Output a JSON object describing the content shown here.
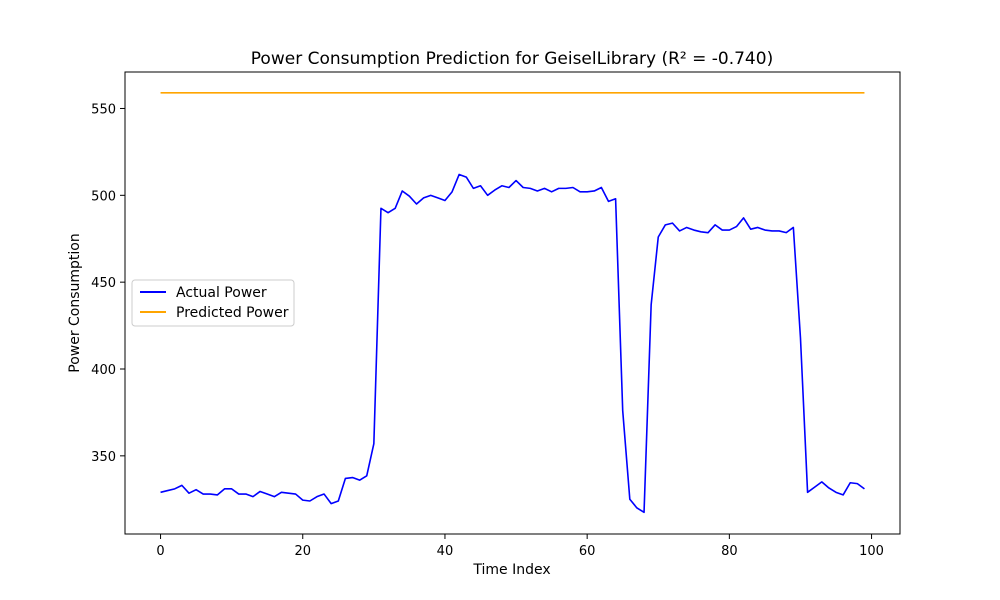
{
  "chart_data": {
    "type": "line",
    "title": "Power Consumption Prediction for GeiselLibrary (R² = -0.740)",
    "xlabel": "Time Index",
    "ylabel": "Power Consumption",
    "xlim": [
      -5,
      104
    ],
    "ylim": [
      305,
      571
    ],
    "xticks": [
      0,
      20,
      40,
      60,
      80,
      100
    ],
    "yticks": [
      350,
      400,
      450,
      500,
      550
    ],
    "grid": false,
    "legend_position": "center-left",
    "series": [
      {
        "name": "Actual Power",
        "color": "#0000ff",
        "x": [
          0,
          1,
          2,
          3,
          4,
          5,
          6,
          7,
          8,
          9,
          10,
          11,
          12,
          13,
          14,
          15,
          16,
          17,
          18,
          19,
          20,
          21,
          22,
          23,
          24,
          25,
          26,
          27,
          28,
          29,
          30,
          31,
          32,
          33,
          34,
          35,
          36,
          37,
          38,
          39,
          40,
          41,
          42,
          43,
          44,
          45,
          46,
          47,
          48,
          49,
          50,
          51,
          52,
          53,
          54,
          55,
          56,
          57,
          58,
          59,
          60,
          61,
          62,
          63,
          64,
          65,
          66,
          67,
          68,
          69,
          70,
          71,
          72,
          73,
          74,
          75,
          76,
          77,
          78,
          79,
          80,
          81,
          82,
          83,
          84,
          85,
          86,
          87,
          88,
          89,
          90,
          91,
          92,
          93,
          94,
          95,
          96,
          97,
          98,
          99
        ],
        "values": [
          329,
          330,
          331,
          333,
          328.5,
          330.5,
          328,
          328,
          327.5,
          331,
          331,
          328,
          328,
          326.5,
          329.5,
          328,
          326.5,
          329,
          328.5,
          328,
          324.5,
          324,
          326.5,
          328,
          322.5,
          324,
          337,
          337.5,
          336,
          338.5,
          357,
          492.5,
          490,
          492.5,
          502.5,
          499.5,
          495,
          498.5,
          500,
          498.5,
          497,
          502,
          512,
          510.5,
          504,
          505.5,
          500,
          503,
          505.5,
          504.5,
          508.5,
          504.5,
          504,
          502.5,
          504,
          502,
          504,
          504,
          504.5,
          502,
          502,
          502.5,
          504.5,
          496.5,
          498,
          376,
          325,
          320,
          317.5,
          437,
          476,
          483,
          484,
          479.5,
          481.5,
          480,
          479,
          478.5,
          483,
          480,
          480,
          482,
          487,
          480.5,
          481.5,
          480,
          479.5,
          479.5,
          478.5,
          481.5,
          418,
          329,
          332,
          335,
          331.5,
          329,
          327.5,
          334.5,
          334,
          331
        ]
      },
      {
        "name": "Predicted Power",
        "color": "#ffa500",
        "x": [
          0,
          99
        ],
        "values": [
          559,
          559
        ]
      }
    ]
  }
}
